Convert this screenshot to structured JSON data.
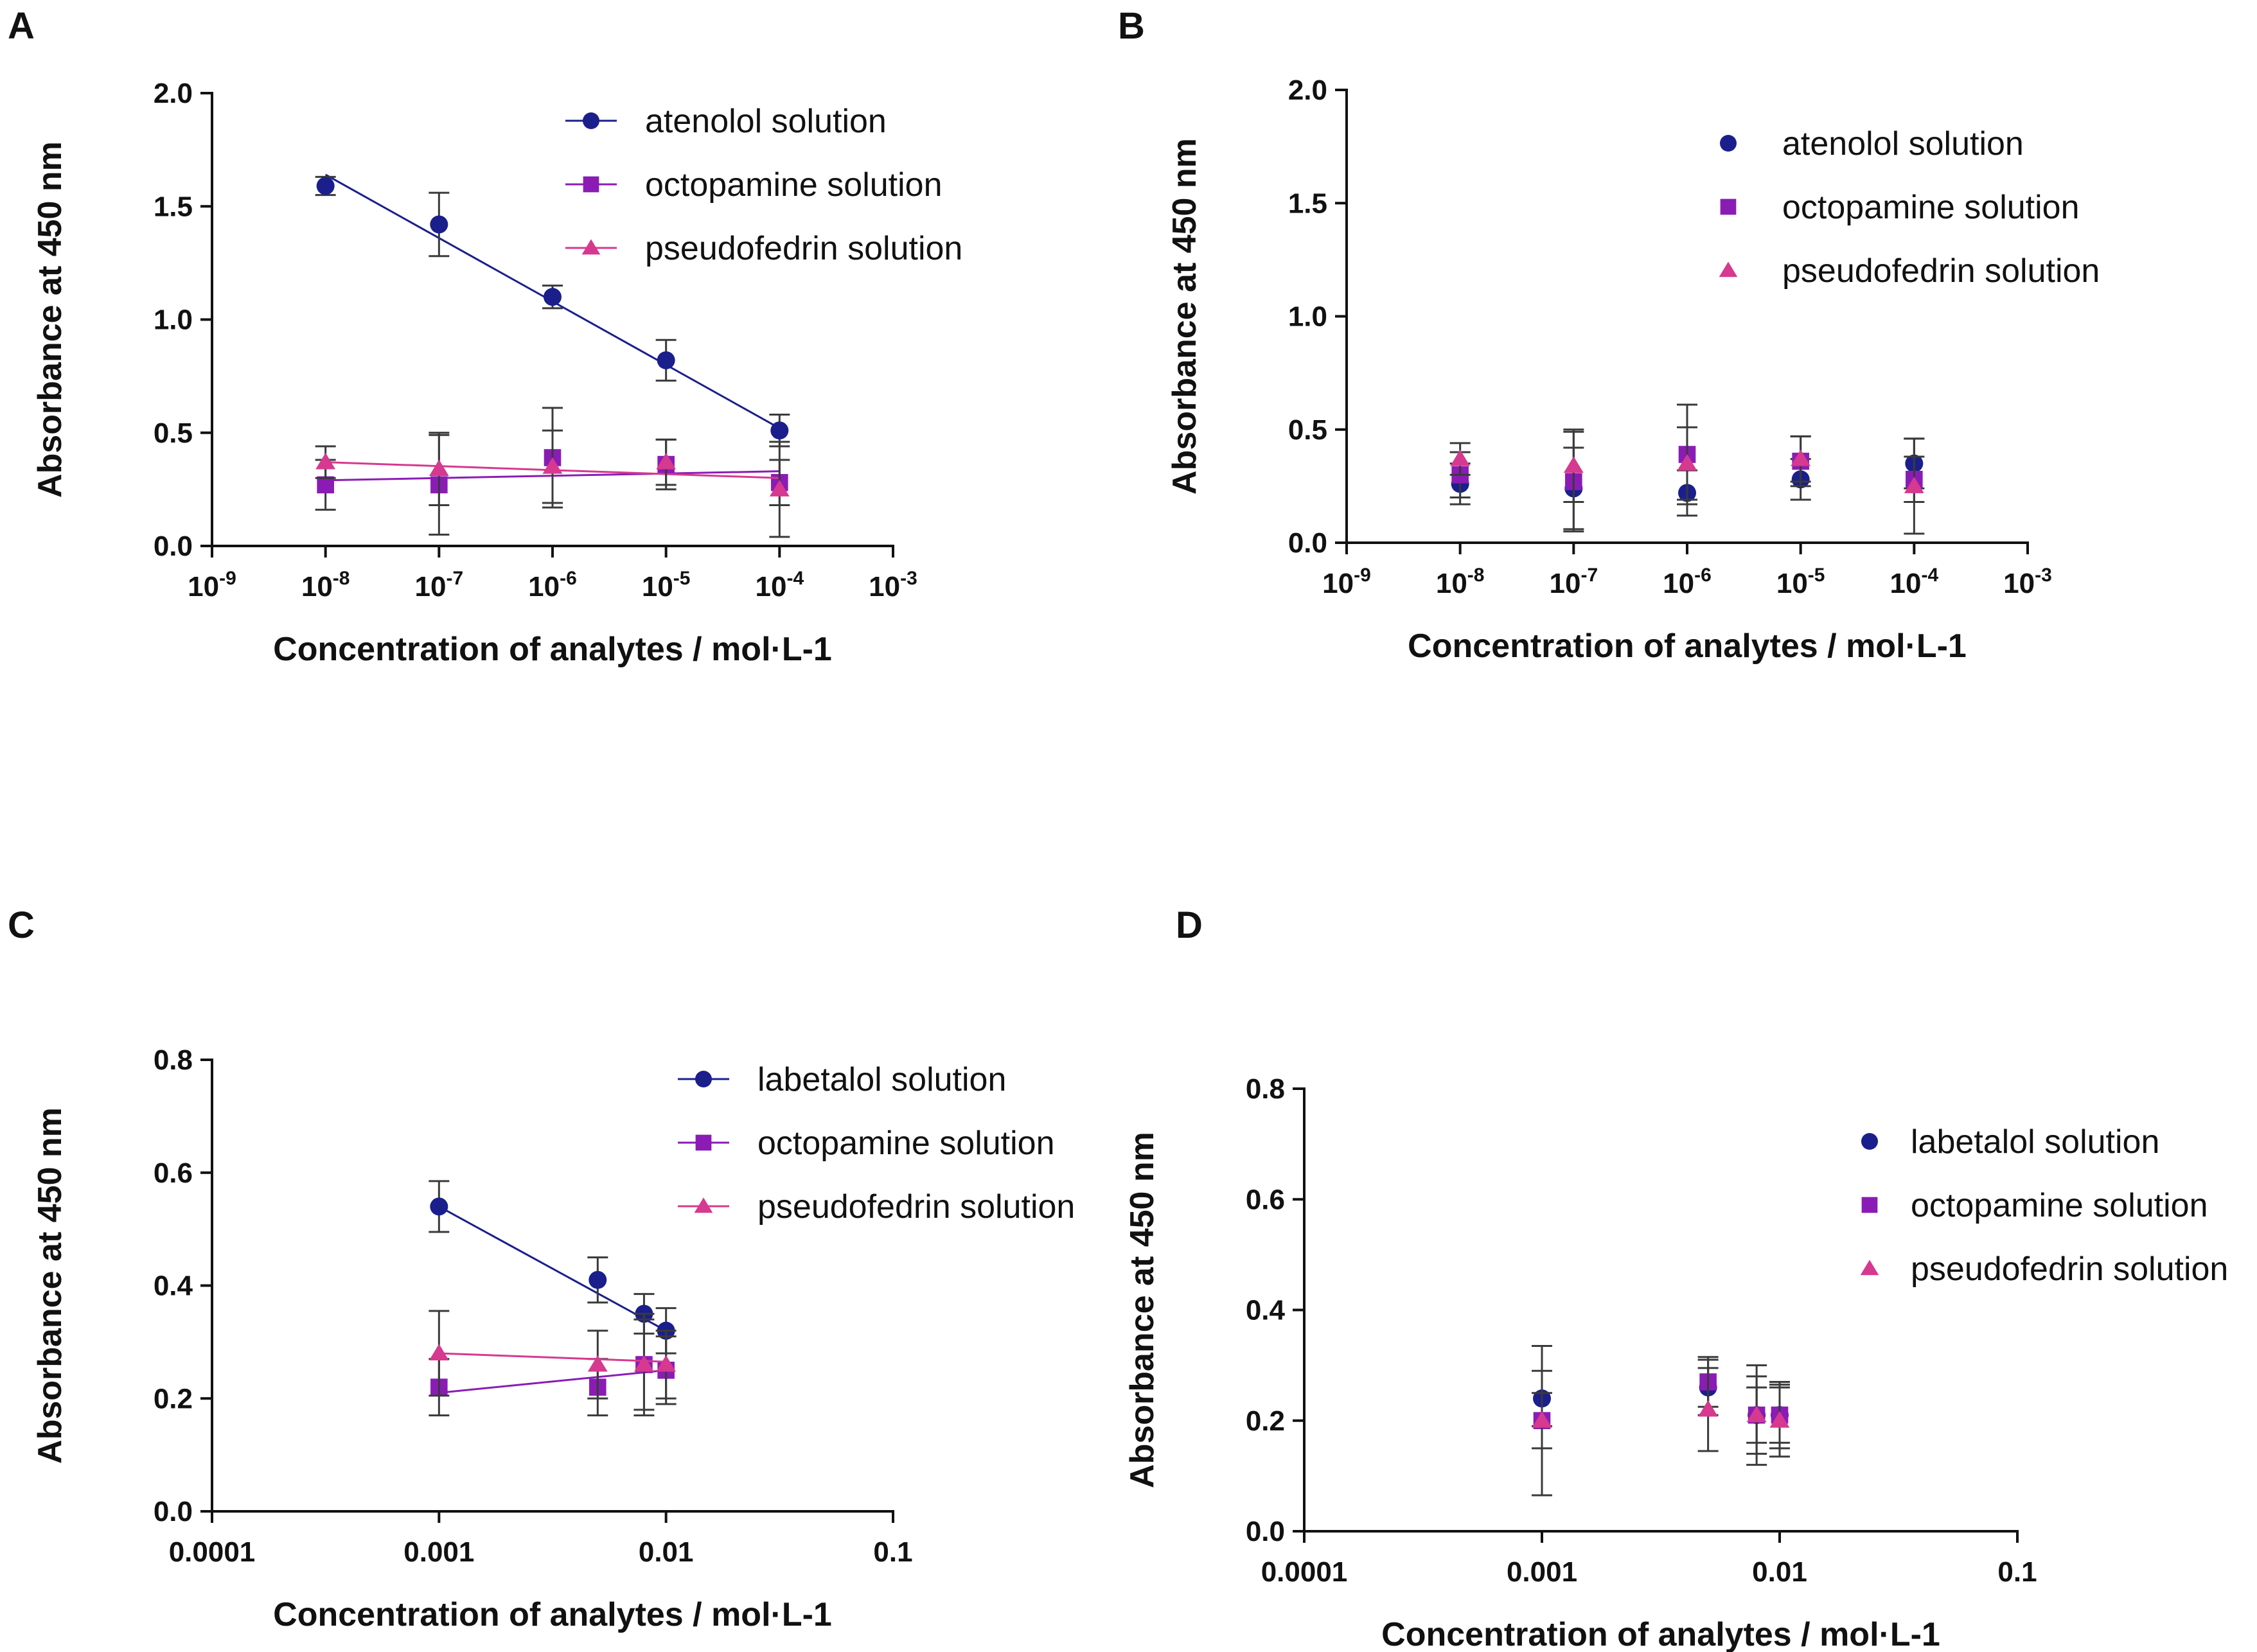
{
  "colors": {
    "navy": "#1a1f8c",
    "purple": "#8a1cb5",
    "pink": "#d6398f",
    "errorbar": "#3a3a3a",
    "axis": "#111111"
  },
  "chart_data": [
    {
      "panel": "A",
      "type": "line",
      "x_scale": "log",
      "show_lines": true,
      "xlim": [
        1e-09,
        0.001
      ],
      "ylim": [
        0,
        2.0
      ],
      "x_ticks": [
        {
          "value": 1e-09,
          "base": "10",
          "exp": "-9"
        },
        {
          "value": 1e-08,
          "base": "10",
          "exp": "-8"
        },
        {
          "value": 1e-07,
          "base": "10",
          "exp": "-7"
        },
        {
          "value": 1e-06,
          "base": "10",
          "exp": "-6"
        },
        {
          "value": 1e-05,
          "base": "10",
          "exp": "-5"
        },
        {
          "value": 0.0001,
          "base": "10",
          "exp": "-4"
        },
        {
          "value": 0.001,
          "base": "10",
          "exp": "-3"
        }
      ],
      "y_ticks": [
        {
          "value": 0,
          "label": "0.0"
        },
        {
          "value": 0.5,
          "label": "0.5"
        },
        {
          "value": 1.0,
          "label": "1.0"
        },
        {
          "value": 1.5,
          "label": "1.5"
        },
        {
          "value": 2.0,
          "label": "2.0"
        }
      ],
      "xlabel": "Concentration of analytes / mol·L-1",
      "ylabel": "Absorbance at 450 nm",
      "legend_position": "top-right",
      "series": [
        {
          "name": "atenolol solution",
          "marker": "circle",
          "color": "#1a1f8c",
          "x": [
            1e-08,
            1e-07,
            1e-06,
            1e-05,
            0.0001
          ],
          "y": [
            1.59,
            1.42,
            1.1,
            0.82,
            0.51
          ],
          "err": [
            0.04,
            0.14,
            0.05,
            0.09,
            0.07
          ],
          "fit": {
            "x": [
              1e-08,
              0.0001
            ],
            "y": [
              1.64,
              0.52
            ]
          }
        },
        {
          "name": "octopamine solution",
          "marker": "square",
          "color": "#8a1cb5",
          "x": [
            1e-08,
            1e-07,
            1e-06,
            1e-05,
            0.0001
          ],
          "y": [
            0.27,
            0.27,
            0.39,
            0.36,
            0.28
          ],
          "err": [
            0.11,
            0.22,
            0.22,
            0.11,
            0.1
          ],
          "fit": {
            "x": [
              1e-08,
              0.0001
            ],
            "y": [
              0.29,
              0.33
            ]
          }
        },
        {
          "name": "pseudofedrin solution",
          "marker": "triangle",
          "color": "#d6398f",
          "x": [
            1e-08,
            1e-07,
            1e-06,
            1e-05,
            0.0001
          ],
          "y": [
            0.37,
            0.34,
            0.35,
            0.37,
            0.25
          ],
          "err": [
            0.07,
            0.16,
            0.16,
            0.1,
            0.21
          ],
          "fit": {
            "x": [
              1e-08,
              0.0001
            ],
            "y": [
              0.37,
              0.3
            ]
          }
        }
      ]
    },
    {
      "panel": "B",
      "type": "scatter",
      "x_scale": "log",
      "show_lines": false,
      "xlim": [
        1e-09,
        0.001
      ],
      "ylim": [
        0,
        2.0
      ],
      "x_ticks": [
        {
          "value": 1e-09,
          "base": "10",
          "exp": "-9"
        },
        {
          "value": 1e-08,
          "base": "10",
          "exp": "-8"
        },
        {
          "value": 1e-07,
          "base": "10",
          "exp": "-7"
        },
        {
          "value": 1e-06,
          "base": "10",
          "exp": "-6"
        },
        {
          "value": 1e-05,
          "base": "10",
          "exp": "-5"
        },
        {
          "value": 0.0001,
          "base": "10",
          "exp": "-4"
        },
        {
          "value": 0.001,
          "base": "10",
          "exp": "-3"
        }
      ],
      "y_ticks": [
        {
          "value": 0,
          "label": "0.0"
        },
        {
          "value": 0.5,
          "label": "0.5"
        },
        {
          "value": 1.0,
          "label": "1.0"
        },
        {
          "value": 1.5,
          "label": "1.5"
        },
        {
          "value": 2.0,
          "label": "2.0"
        }
      ],
      "xlabel": "Concentration of analytes / mol·L-1",
      "ylabel": "Absorbance at 450 nm",
      "legend_position": "top-right",
      "series": [
        {
          "name": "atenolol solution",
          "marker": "circle",
          "color": "#1a1f8c",
          "x": [
            1e-08,
            1e-07,
            1e-06,
            1e-05,
            0.0001
          ],
          "y": [
            0.26,
            0.24,
            0.22,
            0.28,
            0.35
          ],
          "err": [
            0.09,
            0.18,
            0.1,
            0.09,
            0.11
          ]
        },
        {
          "name": "octopamine solution",
          "marker": "square",
          "color": "#8a1cb5",
          "x": [
            1e-08,
            1e-07,
            1e-06,
            1e-05,
            0.0001
          ],
          "y": [
            0.3,
            0.27,
            0.39,
            0.36,
            0.28
          ],
          "err": [
            0.1,
            0.22,
            0.22,
            0.11,
            0.1
          ]
        },
        {
          "name": "pseudofedrin solution",
          "marker": "triangle",
          "color": "#d6398f",
          "x": [
            1e-08,
            1e-07,
            1e-06,
            1e-05,
            0.0001
          ],
          "y": [
            0.37,
            0.34,
            0.35,
            0.37,
            0.25
          ],
          "err": [
            0.07,
            0.16,
            0.16,
            0.1,
            0.21
          ]
        }
      ]
    },
    {
      "panel": "C",
      "type": "line",
      "x_scale": "log",
      "show_lines": true,
      "xlim": [
        0.0001,
        0.1
      ],
      "ylim": [
        0,
        0.8
      ],
      "x_ticks": [
        {
          "value": 0.0001,
          "label": "0.0001"
        },
        {
          "value": 0.001,
          "label": "0.001"
        },
        {
          "value": 0.01,
          "label": "0.01"
        },
        {
          "value": 0.1,
          "label": "0.1"
        }
      ],
      "y_ticks": [
        {
          "value": 0,
          "label": "0.0"
        },
        {
          "value": 0.2,
          "label": "0.2"
        },
        {
          "value": 0.4,
          "label": "0.4"
        },
        {
          "value": 0.6,
          "label": "0.6"
        },
        {
          "value": 0.8,
          "label": "0.8"
        }
      ],
      "xlabel": "Concentration of analytes / mol·L-1",
      "ylabel": "Absorbance at 450 nm",
      "legend_position": "top-right",
      "series": [
        {
          "name": "labetalol solution",
          "marker": "circle",
          "color": "#1a1f8c",
          "x": [
            0.001,
            0.005,
            0.008,
            0.01
          ],
          "y": [
            0.54,
            0.41,
            0.35,
            0.32
          ],
          "err": [
            0.045,
            0.04,
            0.035,
            0.04
          ],
          "fit": {
            "x": [
              0.001,
              0.01
            ],
            "y": [
              0.54,
              0.32
            ]
          }
        },
        {
          "name": "octopamine solution",
          "marker": "square",
          "color": "#8a1cb5",
          "x": [
            0.001,
            0.005,
            0.008,
            0.01
          ],
          "y": [
            0.22,
            0.22,
            0.26,
            0.25
          ],
          "err": [
            0.05,
            0.05,
            0.09,
            0.06
          ],
          "fit": {
            "x": [
              0.001,
              0.01
            ],
            "y": [
              0.21,
              0.25
            ]
          }
        },
        {
          "name": "pseudofedrin solution",
          "marker": "triangle",
          "color": "#d6398f",
          "x": [
            0.001,
            0.005,
            0.008,
            0.01
          ],
          "y": [
            0.28,
            0.26,
            0.26,
            0.26
          ],
          "err": [
            0.075,
            0.06,
            0.08,
            0.06
          ],
          "fit": {
            "x": [
              0.001,
              0.01
            ],
            "y": [
              0.28,
              0.265
            ]
          }
        }
      ]
    },
    {
      "panel": "D",
      "type": "scatter",
      "x_scale": "log",
      "show_lines": false,
      "xlim": [
        0.0001,
        0.1
      ],
      "ylim": [
        0,
        0.8
      ],
      "x_ticks": [
        {
          "value": 0.0001,
          "label": "0.0001"
        },
        {
          "value": 0.001,
          "label": "0.001"
        },
        {
          "value": 0.01,
          "label": "0.01"
        },
        {
          "value": 0.1,
          "label": "0.1"
        }
      ],
      "y_ticks": [
        {
          "value": 0,
          "label": "0.0"
        },
        {
          "value": 0.2,
          "label": "0.2"
        },
        {
          "value": 0.4,
          "label": "0.4"
        },
        {
          "value": 0.6,
          "label": "0.6"
        },
        {
          "value": 0.8,
          "label": "0.8"
        }
      ],
      "xlabel": "Concentration of analytes / mol·L-1",
      "ylabel": "Absorbance at 450 nm",
      "legend_position": "top-right",
      "series": [
        {
          "name": "labetalol solution",
          "marker": "circle",
          "color": "#1a1f8c",
          "x": [
            0.001,
            0.005,
            0.008,
            0.01
          ],
          "y": [
            0.24,
            0.26,
            0.21,
            0.21
          ],
          "err": [
            0.05,
            0.05,
            0.05,
            0.05
          ]
        },
        {
          "name": "octopamine solution",
          "marker": "square",
          "color": "#8a1cb5",
          "x": [
            0.001,
            0.005,
            0.008,
            0.01
          ],
          "y": [
            0.2,
            0.27,
            0.21,
            0.21
          ],
          "err": [
            0.05,
            0.045,
            0.09,
            0.06
          ]
        },
        {
          "name": "pseudofedrin solution",
          "marker": "triangle",
          "color": "#d6398f",
          "x": [
            0.001,
            0.005,
            0.008,
            0.01
          ],
          "y": [
            0.2,
            0.22,
            0.21,
            0.2
          ],
          "err": [
            0.135,
            0.075,
            0.07,
            0.065
          ]
        }
      ]
    }
  ]
}
